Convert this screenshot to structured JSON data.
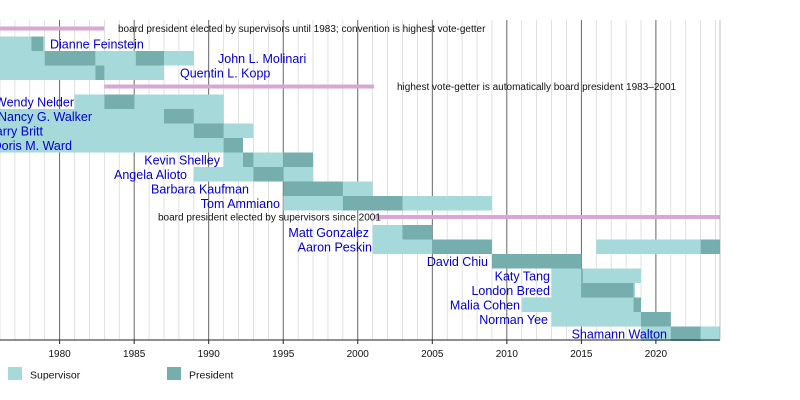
{
  "chart_data": {
    "type": "timeline",
    "x_range": [
      1976,
      2024.3
    ],
    "x_ticks": [
      1980,
      1985,
      1990,
      1995,
      2000,
      2005,
      2010,
      2015,
      2020
    ],
    "grid": true,
    "legend": [
      {
        "name": "Supervisor",
        "color": "#a6d9d9"
      },
      {
        "name": "President",
        "color": "#76adad"
      }
    ],
    "eras": [
      {
        "label": "board president elected by supervisors until 1983; convention is highest vote-getter",
        "start": 1976,
        "end": 1983,
        "row": 0
      },
      {
        "label": "highest vote-getter is automatically board president 1983–2001",
        "start": 1983,
        "end": 2001.1,
        "row": 4
      },
      {
        "label": "board president elected by supervisors since 2001",
        "start": 2001.1,
        "end": 2024.3,
        "row": 13
      }
    ],
    "people": [
      {
        "name": "Dianne Feinstein",
        "row": 1,
        "label_anchor": "start",
        "supervisor": [
          [
            1976,
            1978.1
          ],
          [
            1978.9,
            1979
          ]
        ],
        "president": [
          [
            1978.1,
            1978.9
          ]
        ]
      },
      {
        "name": "John L. Molinari",
        "row": 2,
        "label_anchor": "start",
        "supervisor": [
          [
            1976,
            1979
          ],
          [
            1982.4,
            1985.1
          ],
          [
            1987,
            1989
          ]
        ],
        "president": [
          [
            1979,
            1982.4
          ],
          [
            1985.1,
            1987
          ]
        ]
      },
      {
        "name": "Quentin L. Kopp",
        "row": 3,
        "label_anchor": "start",
        "supervisor": [
          [
            1976,
            1982.4
          ],
          [
            1983,
            1987
          ]
        ],
        "president": [
          [
            1982.4,
            1983
          ]
        ]
      },
      {
        "name": "Wendy Nelder",
        "row": 5,
        "label_anchor": "end",
        "supervisor": [
          [
            1981,
            1983
          ],
          [
            1985,
            1991
          ]
        ],
        "president": [
          [
            1983,
            1985
          ]
        ]
      },
      {
        "name": "Nancy G. Walker",
        "row": 6,
        "label_anchor": "end",
        "supervisor": [
          [
            1976,
            1987
          ],
          [
            1989,
            1991
          ]
        ],
        "president": [
          [
            1987,
            1989
          ]
        ]
      },
      {
        "name": "Harry Britt",
        "row": 7,
        "label_anchor": "end",
        "supervisor": [
          [
            1976,
            1989
          ],
          [
            1991,
            1993
          ]
        ],
        "president": [
          [
            1989,
            1991
          ]
        ]
      },
      {
        "name": "Doris M. Ward",
        "row": 8,
        "label_anchor": "end",
        "supervisor": [
          [
            1976,
            1991
          ]
        ],
        "president": [
          [
            1991,
            1992.3
          ]
        ]
      },
      {
        "name": "Kevin Shelley",
        "row": 9,
        "label_anchor": "end",
        "supervisor": [
          [
            1991,
            1992.3
          ],
          [
            1993,
            1995
          ],
          [
            1997,
            1997
          ]
        ],
        "president": [
          [
            1992.3,
            1993
          ],
          [
            1995,
            1997
          ]
        ]
      },
      {
        "name": "Angela Alioto",
        "row": 10,
        "label_anchor": "end",
        "supervisor": [
          [
            1989,
            1993
          ],
          [
            1995,
            1997
          ]
        ],
        "president": [
          [
            1993,
            1995
          ]
        ]
      },
      {
        "name": "Barbara Kaufman",
        "row": 11,
        "label_anchor": "end",
        "supervisor": [
          [
            1997,
            1999
          ],
          [
            1999,
            2001
          ]
        ],
        "president": [
          [
            1995,
            1999
          ]
        ]
      },
      {
        "name": "Tom Ammiano",
        "row": 12,
        "label_anchor": "end",
        "supervisor": [
          [
            1995,
            1999
          ],
          [
            2003,
            2009
          ]
        ],
        "president": [
          [
            1999,
            2003
          ]
        ]
      },
      {
        "name": "Matt Gonzalez",
        "row": 14,
        "label_anchor": "end",
        "supervisor": [
          [
            2001,
            2003
          ]
        ],
        "president": [
          [
            2003,
            2005
          ]
        ]
      },
      {
        "name": "Aaron Peskin",
        "row": 15,
        "label_anchor": "end",
        "supervisor": [
          [
            2001,
            2005
          ],
          [
            2016,
            2023
          ]
        ],
        "president": [
          [
            2005,
            2009
          ],
          [
            2023,
            2024.3
          ]
        ]
      },
      {
        "name": "David Chiu",
        "row": 16,
        "label_anchor": "end",
        "supervisor": [],
        "president": [
          [
            2009,
            2015
          ]
        ]
      },
      {
        "name": "Katy Tang",
        "row": 17,
        "label_anchor": "end",
        "supervisor": [
          [
            2013,
            2015
          ],
          [
            2015,
            2019
          ]
        ],
        "president": [
          [
            2015,
            2015.1
          ]
        ]
      },
      {
        "name": "London Breed",
        "row": 18,
        "label_anchor": "end",
        "supervisor": [
          [
            2013,
            2015
          ],
          [
            2018.5,
            2018.6
          ]
        ],
        "president": [
          [
            2015,
            2018.5
          ]
        ]
      },
      {
        "name": "Malia Cohen",
        "row": 19,
        "label_anchor": "end",
        "supervisor": [
          [
            2011,
            2018.5
          ]
        ],
        "president": [
          [
            2018.5,
            2019
          ]
        ]
      },
      {
        "name": "Norman Yee",
        "row": 20,
        "label_anchor": "end",
        "supervisor": [
          [
            2013,
            2019
          ]
        ],
        "president": [
          [
            2019,
            2021
          ]
        ]
      },
      {
        "name": "Shamann Walton",
        "row": 21,
        "label_anchor": "end",
        "supervisor": [
          [
            2019,
            2021
          ],
          [
            2023,
            2024.3
          ]
        ],
        "president": [
          [
            2021,
            2023
          ]
        ]
      }
    ]
  }
}
